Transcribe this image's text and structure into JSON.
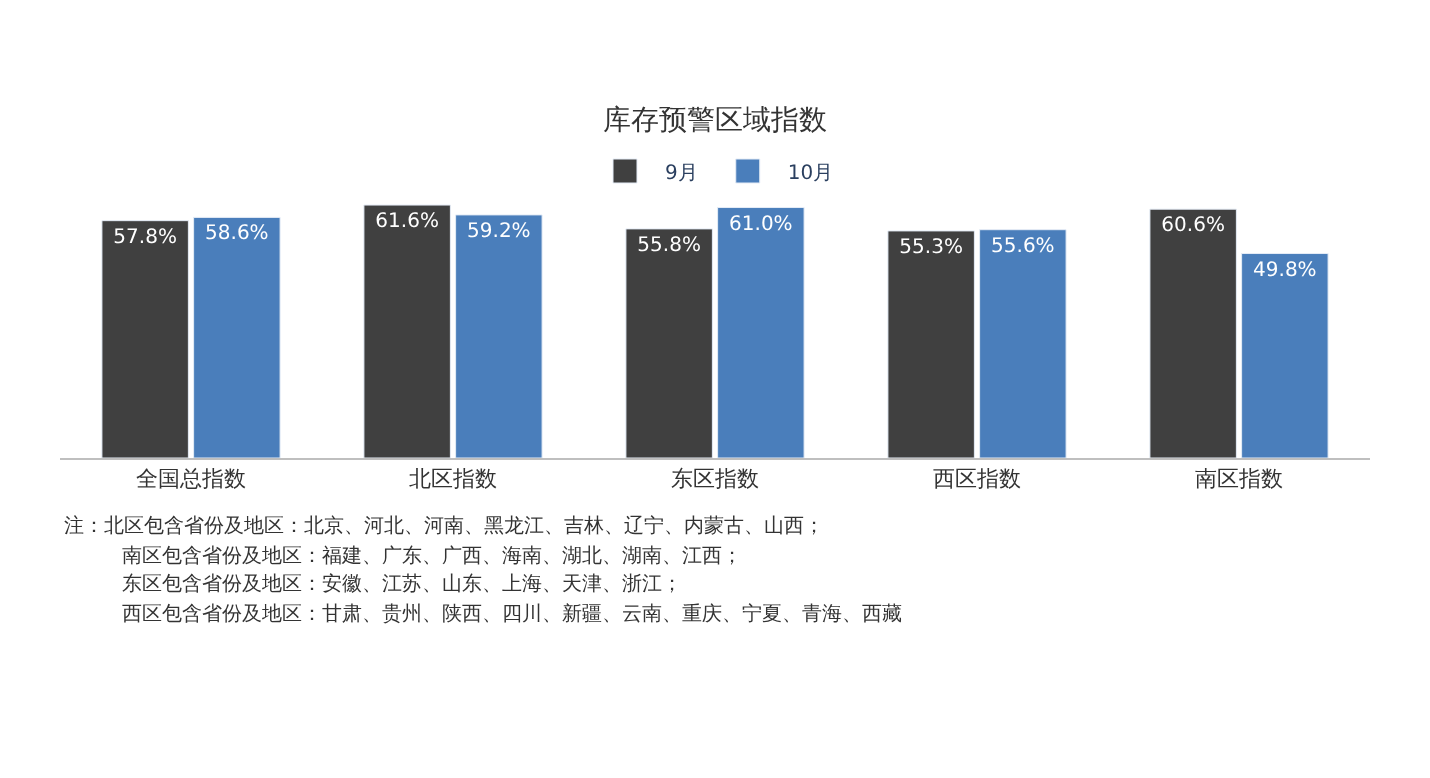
{
  "chart_data": {
    "type": "bar",
    "title": "库存预警区域指数",
    "categories": [
      "全国总指数",
      "北区指数",
      "东区指数",
      "西区指数",
      "南区指数"
    ],
    "series": [
      {
        "name": "9月",
        "color": "#404040",
        "values": [
          57.8,
          61.6,
          55.8,
          55.3,
          60.6
        ],
        "value_labels": [
          "57.8%",
          "61.6%",
          "55.8%",
          "55.3%",
          "60.6%"
        ]
      },
      {
        "name": "10月",
        "color": "#4a7ebb",
        "values": [
          58.6,
          59.2,
          61.0,
          55.6,
          49.8
        ],
        "value_labels": [
          "58.6%",
          "59.2%",
          "61.0%",
          "55.6%",
          "49.8%"
        ]
      }
    ],
    "legend": "top",
    "annotations": [
      "注：北区包含省份及地区：北京、河北、河南、黑龙江、吉林、辽宁、内蒙古、山西；",
      "南区包含省份及地区：福建、广东、广西、海南、湖北、湖南、江西；",
      "东区包含省份及地区：安徽、江苏、山东、上海、天津、浙江；",
      "西区包含省份及地区：甘肃、贵州、陕西、四川、新疆、云南、重庆、宁夏、青海、西藏"
    ]
  }
}
